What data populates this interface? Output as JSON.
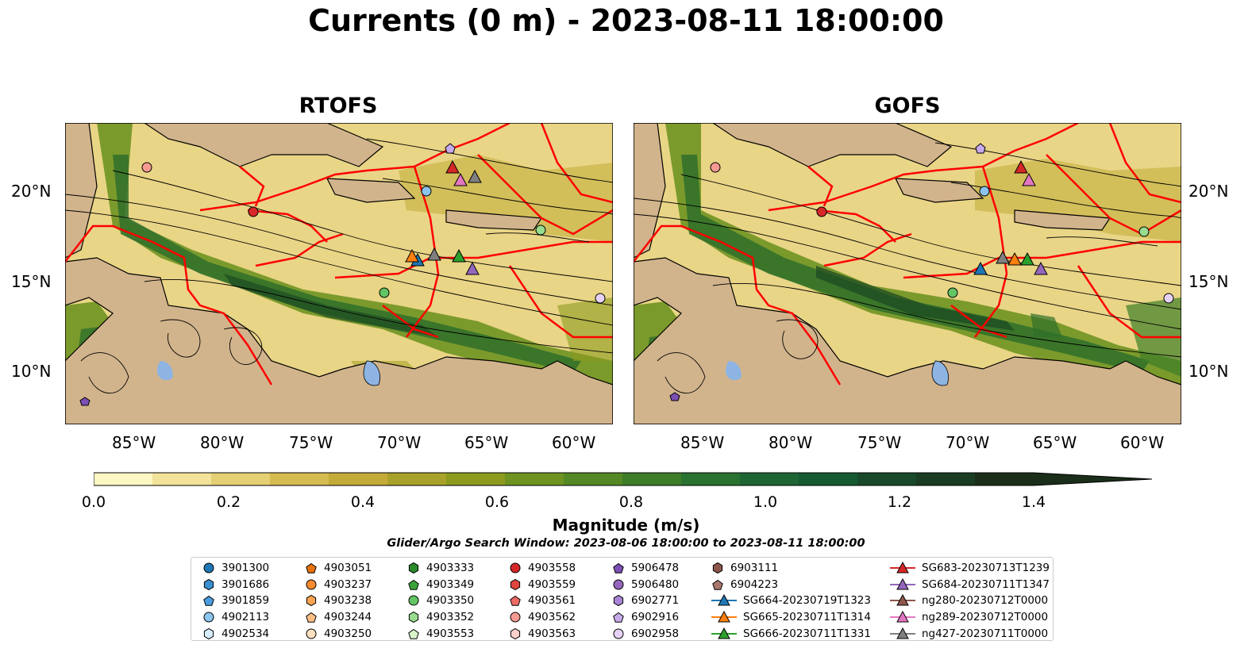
{
  "title": "Currents (0 m) - 2023-08-11 18:00:00",
  "panels": [
    {
      "title": "RTOFS"
    },
    {
      "title": "GOFS"
    }
  ],
  "lat_ticks": [
    "20°N",
    "15°N",
    "10°N"
  ],
  "lon_ticks": [
    "85°W",
    "80°W",
    "75°W",
    "70°W",
    "65°W",
    "60°W"
  ],
  "colorbar": {
    "label": "Magnitude (m/s)",
    "ticks": [
      "0.0",
      "0.2",
      "0.4",
      "0.6",
      "0.8",
      "1.0",
      "1.2",
      "1.4"
    ],
    "colors": [
      "#fdf7c3",
      "#f3e39a",
      "#e5cf73",
      "#d6bb50",
      "#c4ab38",
      "#a9a22a",
      "#8c9b1e",
      "#6e9320",
      "#538824",
      "#3d7d27",
      "#2a7230",
      "#1d6634",
      "#155a30",
      "#17492a",
      "#1a3c22",
      "#1b2e1a"
    ]
  },
  "search_window": "Glider/Argo Search Window: 2023-08-06 18:00:00 to 2023-08-11 18:00:00",
  "legend": [
    {
      "label": "3901300",
      "shape": "circle",
      "color": "#1f77b4"
    },
    {
      "label": "3901686",
      "shape": "hexagon",
      "color": "#3a8fcf"
    },
    {
      "label": "3901859",
      "shape": "pentagon",
      "color": "#4a9de0"
    },
    {
      "label": "4902113",
      "shape": "circle",
      "color": "#8cc4f0"
    },
    {
      "label": "4902534",
      "shape": "hexagon",
      "color": "#d6ecfb"
    },
    {
      "label": "4903051",
      "shape": "pentagon",
      "color": "#e8720c"
    },
    {
      "label": "4903237",
      "shape": "circle",
      "color": "#f58a2e"
    },
    {
      "label": "4903238",
      "shape": "hexagon",
      "color": "#f8a453"
    },
    {
      "label": "4903244",
      "shape": "pentagon",
      "color": "#fbbf85"
    },
    {
      "label": "4903250",
      "shape": "circle",
      "color": "#fde0c0"
    },
    {
      "label": "4903333",
      "shape": "hexagon",
      "color": "#2a8a2a"
    },
    {
      "label": "4903349",
      "shape": "pentagon",
      "color": "#3aa33a"
    },
    {
      "label": "4903350",
      "shape": "circle",
      "color": "#63c463"
    },
    {
      "label": "4903352",
      "shape": "hexagon",
      "color": "#98dc8f"
    },
    {
      "label": "4903553",
      "shape": "pentagon",
      "color": "#d7f5c9"
    },
    {
      "label": "4903558",
      "shape": "circle",
      "color": "#d62728"
    },
    {
      "label": "4903559",
      "shape": "hexagon",
      "color": "#e0463f"
    },
    {
      "label": "4903561",
      "shape": "pentagon",
      "color": "#ec6b63"
    },
    {
      "label": "4903562",
      "shape": "circle",
      "color": "#f59a92"
    },
    {
      "label": "4903563",
      "shape": "hexagon",
      "color": "#fcd1cc"
    },
    {
      "label": "5906478",
      "shape": "pentagon",
      "color": "#7b4fb3"
    },
    {
      "label": "5906480",
      "shape": "circle",
      "color": "#9467bd"
    },
    {
      "label": "6902771",
      "shape": "hexagon",
      "color": "#aa84d6"
    },
    {
      "label": "6902916",
      "shape": "pentagon",
      "color": "#c7aaea"
    },
    {
      "label": "6902958",
      "shape": "circle",
      "color": "#e6d2f7"
    },
    {
      "label": "6903111",
      "shape": "hexagon",
      "color": "#8c564b"
    },
    {
      "label": "6904223",
      "shape": "pentagon",
      "color": "#a9776b"
    },
    {
      "label": "SG664-20230719T1323",
      "shape": "triangle",
      "color": "#1f77b4"
    },
    {
      "label": "SG665-20230711T1314",
      "shape": "triangle",
      "color": "#ff7f0e"
    },
    {
      "label": "SG666-20230711T1331",
      "shape": "triangle",
      "color": "#2ca02c"
    },
    {
      "label": "SG683-20230713T1239",
      "shape": "triangle",
      "color": "#d62728"
    },
    {
      "label": "SG684-20230711T1347",
      "shape": "triangle",
      "color": "#9467bd"
    },
    {
      "label": "ng280-20230712T0000",
      "shape": "triangle",
      "color": "#8c564b"
    },
    {
      "label": "ng289-20230712T0000",
      "shape": "triangle",
      "color": "#e377c2"
    },
    {
      "label": "ng427-20230711T0000",
      "shape": "triangle",
      "color": "#7f7f7f"
    }
  ],
  "map_colors": {
    "land": "#d2b48c",
    "lake": "#8db4e2",
    "eez": "#ff0000",
    "streamline": "#000000"
  }
}
